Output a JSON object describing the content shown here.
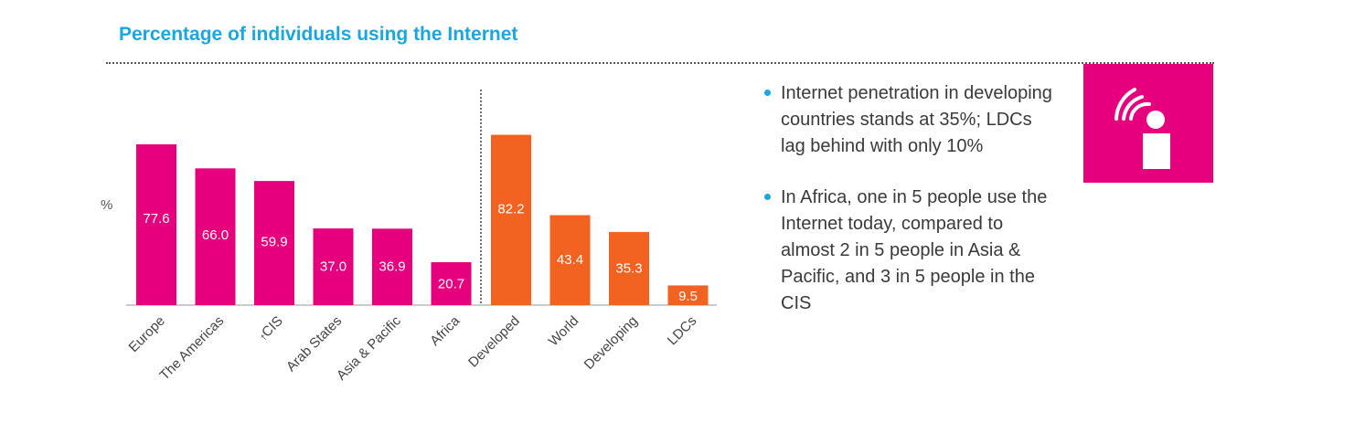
{
  "title": "Percentage of individuals using the Internet",
  "ylabel": "%",
  "chart_data": {
    "type": "bar",
    "title": "Percentage of individuals using the Internet",
    "ylabel": "%",
    "xlabel": "",
    "ylim": [
      0,
      100
    ],
    "grid": false,
    "groups": [
      {
        "color": "#e6007e",
        "categories": [
          "Europe",
          "The Americas",
          "CIS",
          "Arab States",
          "Asia & Pacific",
          "Africa"
        ],
        "category_markers": [
          "",
          "",
          "†",
          "",
          "",
          ""
        ],
        "values": [
          77.6,
          66.0,
          59.9,
          37.0,
          36.9,
          20.7
        ],
        "value_labels": [
          "77.6",
          "66.0",
          "59.9",
          "37.0",
          "36.9",
          "20.7"
        ]
      },
      {
        "color": "#f26322",
        "categories": [
          "Developed",
          "World",
          "Developing",
          "LDCs"
        ],
        "category_markers": [
          "",
          "",
          "",
          ""
        ],
        "values": [
          82.2,
          43.4,
          35.3,
          9.5
        ],
        "value_labels": [
          "82.2",
          "43.4",
          "35.3",
          "9.5"
        ]
      }
    ]
  },
  "notes": [
    "Internet penetration in developing countries stands at 35%; LDCs lag behind with only 10%",
    "In Africa, one in 5 people use the Internet today, compared to almost 2 in 5 people in Asia & Pacific, and 3 in 5 people in the CIS"
  ],
  "icon": "wifi-info-icon",
  "colors": {
    "title": "#1ba6e0",
    "regions": "#e6007e",
    "development": "#f26322",
    "bullet": "#1ba6e0",
    "icon_bg": "#e6007e"
  }
}
